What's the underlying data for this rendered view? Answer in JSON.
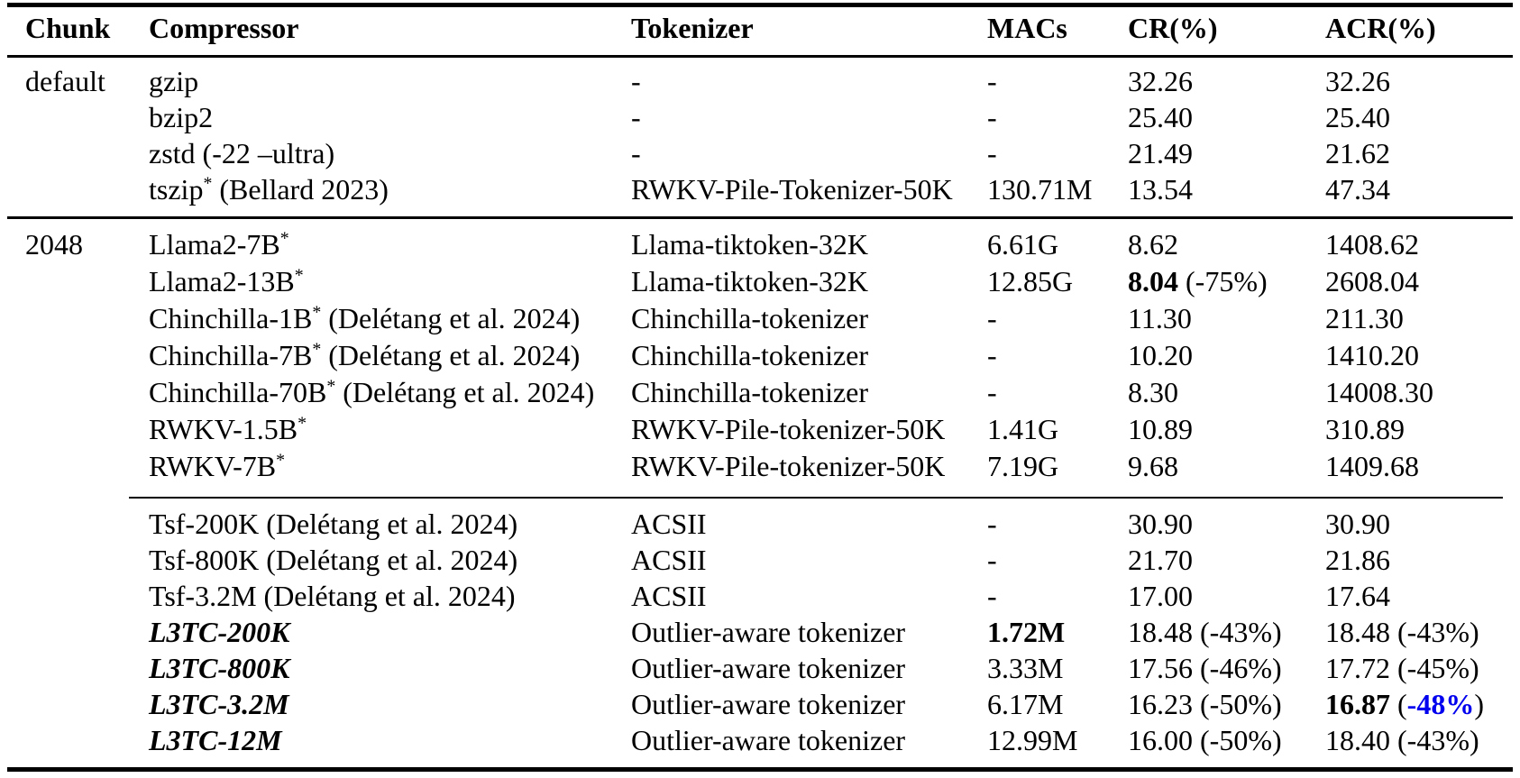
{
  "colors": {
    "text": "#000000",
    "blue": "#0000EE",
    "rule": "#000000",
    "background": "#ffffff"
  },
  "table": {
    "columns": [
      "Chunk",
      "Compressor",
      "Tokenizer",
      "MACs",
      "CR(%)",
      "ACR(%)"
    ],
    "sections": [
      {
        "rows": [
          {
            "chunk": [
              {
                "t": "default"
              }
            ],
            "compressor": [
              {
                "t": "gzip"
              }
            ],
            "tokenizer": [
              {
                "t": "-"
              }
            ],
            "macs": [
              {
                "t": "-"
              }
            ],
            "cr": [
              {
                "t": "32.26"
              }
            ],
            "acr": [
              {
                "t": "32.26"
              }
            ]
          },
          {
            "chunk": [],
            "compressor": [
              {
                "t": "bzip2"
              }
            ],
            "tokenizer": [
              {
                "t": "-"
              }
            ],
            "macs": [
              {
                "t": "-"
              }
            ],
            "cr": [
              {
                "t": "25.40"
              }
            ],
            "acr": [
              {
                "t": "25.40"
              }
            ]
          },
          {
            "chunk": [],
            "compressor": [
              {
                "t": "zstd (-22 –ultra)"
              }
            ],
            "tokenizer": [
              {
                "t": "-"
              }
            ],
            "macs": [
              {
                "t": "-"
              }
            ],
            "cr": [
              {
                "t": "21.49"
              }
            ],
            "acr": [
              {
                "t": "21.62"
              }
            ]
          },
          {
            "chunk": [],
            "compressor": [
              {
                "t": "tszip"
              },
              {
                "t": "*",
                "sup": true
              },
              {
                "t": " (Bellard 2023)"
              }
            ],
            "tokenizer": [
              {
                "t": "RWKV-Pile-Tokenizer-50K"
              }
            ],
            "macs": [
              {
                "t": "130.71M"
              }
            ],
            "cr": [
              {
                "t": "13.54"
              }
            ],
            "acr": [
              {
                "t": "47.34"
              }
            ]
          }
        ]
      },
      {
        "rows": [
          {
            "chunk": [
              {
                "t": "2048"
              }
            ],
            "compressor": [
              {
                "t": "Llama2-7B"
              },
              {
                "t": "*",
                "sup": true
              }
            ],
            "tokenizer": [
              {
                "t": "Llama-tiktoken-32K"
              }
            ],
            "macs": [
              {
                "t": "6.61G"
              }
            ],
            "cr": [
              {
                "t": "8.62"
              }
            ],
            "acr": [
              {
                "t": "1408.62"
              }
            ]
          },
          {
            "chunk": [],
            "compressor": [
              {
                "t": "Llama2-13B"
              },
              {
                "t": "*",
                "sup": true
              }
            ],
            "tokenizer": [
              {
                "t": "Llama-tiktoken-32K"
              }
            ],
            "macs": [
              {
                "t": "12.85G"
              }
            ],
            "cr": [
              {
                "t": "8.04",
                "b": true
              },
              {
                "t": " (-75%)"
              }
            ],
            "acr": [
              {
                "t": "2608.04"
              }
            ]
          },
          {
            "chunk": [],
            "compressor": [
              {
                "t": "Chinchilla-1B"
              },
              {
                "t": "*",
                "sup": true
              },
              {
                "t": " (Delétang et al. 2024)"
              }
            ],
            "tokenizer": [
              {
                "t": "Chinchilla-tokenizer"
              }
            ],
            "macs": [
              {
                "t": "-"
              }
            ],
            "cr": [
              {
                "t": "11.30"
              }
            ],
            "acr": [
              {
                "t": "211.30"
              }
            ]
          },
          {
            "chunk": [],
            "compressor": [
              {
                "t": "Chinchilla-7B"
              },
              {
                "t": "*",
                "sup": true
              },
              {
                "t": " (Delétang et al. 2024)"
              }
            ],
            "tokenizer": [
              {
                "t": "Chinchilla-tokenizer"
              }
            ],
            "macs": [
              {
                "t": "-"
              }
            ],
            "cr": [
              {
                "t": "10.20"
              }
            ],
            "acr": [
              {
                "t": "1410.20"
              }
            ]
          },
          {
            "chunk": [],
            "compressor": [
              {
                "t": "Chinchilla-70B"
              },
              {
                "t": "*",
                "sup": true
              },
              {
                "t": " (Delétang et al. 2024)"
              }
            ],
            "tokenizer": [
              {
                "t": "Chinchilla-tokenizer"
              }
            ],
            "macs": [
              {
                "t": "-"
              }
            ],
            "cr": [
              {
                "t": "8.30"
              }
            ],
            "acr": [
              {
                "t": "14008.30"
              }
            ]
          },
          {
            "chunk": [],
            "compressor": [
              {
                "t": "RWKV-1.5B"
              },
              {
                "t": "*",
                "sup": true
              }
            ],
            "tokenizer": [
              {
                "t": "RWKV-Pile-tokenizer-50K"
              }
            ],
            "macs": [
              {
                "t": "1.41G"
              }
            ],
            "cr": [
              {
                "t": "10.89"
              }
            ],
            "acr": [
              {
                "t": "310.89"
              }
            ]
          },
          {
            "chunk": [],
            "compressor": [
              {
                "t": "RWKV-7B"
              },
              {
                "t": "*",
                "sup": true
              }
            ],
            "tokenizer": [
              {
                "t": "RWKV-Pile-tokenizer-50K"
              }
            ],
            "macs": [
              {
                "t": "7.19G"
              }
            ],
            "cr": [
              {
                "t": "9.68"
              }
            ],
            "acr": [
              {
                "t": "1409.68"
              }
            ]
          }
        ]
      },
      {
        "rows": [
          {
            "chunk": [],
            "compressor": [
              {
                "t": "Tsf-200K (Delétang et al. 2024)"
              }
            ],
            "tokenizer": [
              {
                "t": "ACSII"
              }
            ],
            "macs": [
              {
                "t": "-"
              }
            ],
            "cr": [
              {
                "t": "30.90"
              }
            ],
            "acr": [
              {
                "t": "30.90"
              }
            ]
          },
          {
            "chunk": [],
            "compressor": [
              {
                "t": "Tsf-800K (Delétang et al. 2024)"
              }
            ],
            "tokenizer": [
              {
                "t": "ACSII"
              }
            ],
            "macs": [
              {
                "t": "-"
              }
            ],
            "cr": [
              {
                "t": "21.70"
              }
            ],
            "acr": [
              {
                "t": "21.86"
              }
            ]
          },
          {
            "chunk": [],
            "compressor": [
              {
                "t": "Tsf-3.2M (Delétang et al. 2024)"
              }
            ],
            "tokenizer": [
              {
                "t": "ACSII"
              }
            ],
            "macs": [
              {
                "t": "-"
              }
            ],
            "cr": [
              {
                "t": "17.00"
              }
            ],
            "acr": [
              {
                "t": "17.64"
              }
            ]
          },
          {
            "chunk": [],
            "compressor": [
              {
                "t": "L3TC-200K",
                "b": true,
                "i": true
              }
            ],
            "tokenizer": [
              {
                "t": "Outlier-aware tokenizer"
              }
            ],
            "macs": [
              {
                "t": "1.72M",
                "b": true
              }
            ],
            "cr": [
              {
                "t": "18.48 (-43%)"
              }
            ],
            "acr": [
              {
                "t": "18.48 (-43%)"
              }
            ]
          },
          {
            "chunk": [],
            "compressor": [
              {
                "t": "L3TC-800K",
                "b": true,
                "i": true
              }
            ],
            "tokenizer": [
              {
                "t": "Outlier-aware tokenizer"
              }
            ],
            "macs": [
              {
                "t": "3.33M"
              }
            ],
            "cr": [
              {
                "t": "17.56 (-46%)"
              }
            ],
            "acr": [
              {
                "t": "17.72 (-45%)"
              }
            ]
          },
          {
            "chunk": [],
            "compressor": [
              {
                "t": "L3TC-3.2M",
                "b": true,
                "i": true
              }
            ],
            "tokenizer": [
              {
                "t": "Outlier-aware tokenizer"
              }
            ],
            "macs": [
              {
                "t": "6.17M"
              }
            ],
            "cr": [
              {
                "t": "16.23 (-50%)"
              }
            ],
            "acr": [
              {
                "t": "16.87",
                "b": true
              },
              {
                "t": " ("
              },
              {
                "t": "-48%",
                "b": true,
                "c": "blue"
              },
              {
                "t": ")"
              }
            ]
          },
          {
            "chunk": [],
            "compressor": [
              {
                "t": "L3TC-12M",
                "b": true,
                "i": true
              }
            ],
            "tokenizer": [
              {
                "t": "Outlier-aware tokenizer"
              }
            ],
            "macs": [
              {
                "t": "12.99M"
              }
            ],
            "cr": [
              {
                "t": "16.00 (-50%)"
              }
            ],
            "acr": [
              {
                "t": "18.40 (-43%)"
              }
            ]
          }
        ]
      }
    ]
  }
}
